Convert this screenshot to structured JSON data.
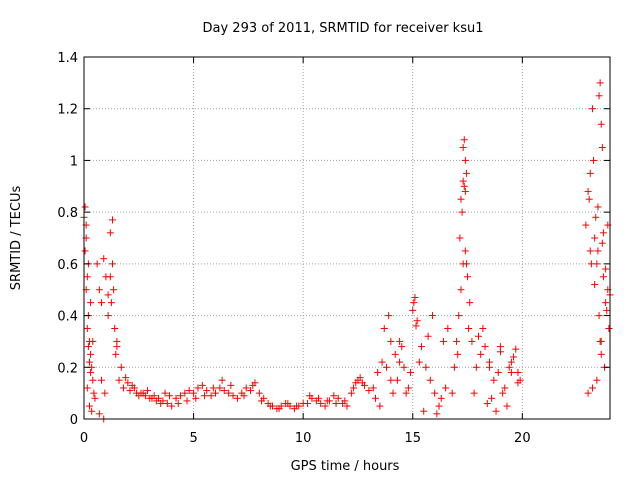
{
  "chart_data": {
    "type": "scatter",
    "title": "Day 293 of 2011, SRMTID for receiver ksu1",
    "xlabel": "GPS time / hours",
    "ylabel": "SRMTID / TECUs",
    "xlim": [
      0,
      24
    ],
    "ylim": [
      0,
      1.4
    ],
    "xticks": [
      0,
      5,
      10,
      15,
      20
    ],
    "xtick_labels": [
      "0",
      "5",
      "10",
      "15",
      "20"
    ],
    "yticks": [
      0,
      0.2,
      0.4,
      0.6,
      0.8,
      1.0,
      1.2,
      1.4
    ],
    "ytick_labels": [
      "0",
      "0.2",
      "0.4",
      "0.6",
      "0.8",
      "1",
      "1.2",
      "1.4"
    ],
    "grid": true,
    "marker": "+",
    "color": "#ff0000",
    "series": [
      {
        "name": "SRMTID",
        "x": [
          0.0,
          0.05,
          0.1,
          0.15,
          0.2,
          0.25,
          0.3,
          0.35,
          0.4,
          0.45,
          0.5,
          0.05,
          0.1,
          0.15,
          0.2,
          0.25,
          0.3,
          0.1,
          0.2,
          0.3,
          0.4,
          0.15,
          0.25,
          0.35,
          0.6,
          0.7,
          0.8,
          0.9,
          1.0,
          1.1,
          1.2,
          1.3,
          1.4,
          1.5,
          0.7,
          0.9,
          1.1,
          1.3,
          1.5,
          1.2,
          1.35,
          1.45,
          1.25,
          0.8,
          0.95,
          1.6,
          1.8,
          2.0,
          2.2,
          2.4,
          2.6,
          2.8,
          3.0,
          3.2,
          3.4,
          3.6,
          3.8,
          4.0,
          1.7,
          1.9,
          2.1,
          2.3,
          2.5,
          2.7,
          2.9,
          3.1,
          3.3,
          3.5,
          3.7,
          3.9,
          4.2,
          4.4,
          4.6,
          4.8,
          5.0,
          5.2,
          5.4,
          5.6,
          5.8,
          6.0,
          6.2,
          6.4,
          6.6,
          6.8,
          7.0,
          4.3,
          4.7,
          5.1,
          5.5,
          5.9,
          6.3,
          6.7,
          7.2,
          7.4,
          7.6,
          7.8,
          8.0,
          8.2,
          8.4,
          8.6,
          8.8,
          9.0,
          9.2,
          9.4,
          9.6,
          9.8,
          10.0,
          7.3,
          7.7,
          8.1,
          8.5,
          8.9,
          9.3,
          9.7,
          10.2,
          10.4,
          10.6,
          10.8,
          11.0,
          11.2,
          11.4,
          11.6,
          11.8,
          12.0,
          10.3,
          10.7,
          11.1,
          11.5,
          11.9,
          12.2,
          12.4,
          12.6,
          12.8,
          13.0,
          12.3,
          12.5,
          12.7,
          13.2,
          13.4,
          13.6,
          13.8,
          14.0,
          14.2,
          14.4,
          14.6,
          14.8,
          13.3,
          13.7,
          14.1,
          14.5,
          14.9,
          13.5,
          13.9,
          14.3,
          14.7,
          14.0,
          14.4,
          15.0,
          15.1,
          15.2,
          15.4,
          15.6,
          15.8,
          16.0,
          16.2,
          16.4,
          16.6,
          15.3,
          15.7,
          16.1,
          16.5,
          15.9,
          16.3,
          15.5,
          16.8,
          15.05,
          15.15,
          16.9,
          17.0,
          17.1,
          17.2,
          17.3,
          17.4,
          17.5,
          17.6,
          17.15,
          17.25,
          17.35,
          17.45,
          17.05,
          17.55,
          17.2,
          17.3,
          17.4,
          17.3,
          17.35,
          17.4,
          17.45,
          17.7,
          17.9,
          18.1,
          18.3,
          18.5,
          18.7,
          18.9,
          19.1,
          19.3,
          19.5,
          19.7,
          19.9,
          17.8,
          18.2,
          18.6,
          19.0,
          19.4,
          19.8,
          18.4,
          18.8,
          19.2,
          19.6,
          18.0,
          18.5,
          19.0,
          19.5,
          19.8,
          22.9,
          23.0,
          23.1,
          23.2,
          23.3,
          23.4,
          23.5,
          23.6,
          23.7,
          23.8,
          23.9,
          24.0,
          23.05,
          23.25,
          23.45,
          23.65,
          23.85,
          23.15,
          23.35,
          23.55,
          23.75,
          23.95,
          23.0,
          23.2,
          23.4,
          23.6,
          23.5,
          23.55,
          23.6,
          23.65,
          23.7,
          23.45,
          23.8,
          23.9,
          23.1,
          23.3
        ],
        "y": [
          0.78,
          0.82,
          0.7,
          0.55,
          0.4,
          0.3,
          0.25,
          0.2,
          0.15,
          0.1,
          0.08,
          0.65,
          0.5,
          0.35,
          0.28,
          0.22,
          0.18,
          0.75,
          0.6,
          0.45,
          0.3,
          0.12,
          0.05,
          0.03,
          0.6,
          0.5,
          0.45,
          0.62,
          0.55,
          0.48,
          0.72,
          0.6,
          0.35,
          0.28,
          0.02,
          0.0,
          0.4,
          0.77,
          0.3,
          0.55,
          0.5,
          0.25,
          0.45,
          0.15,
          0.1,
          0.15,
          0.12,
          0.14,
          0.13,
          0.1,
          0.1,
          0.09,
          0.08,
          0.09,
          0.08,
          0.07,
          0.06,
          0.05,
          0.2,
          0.16,
          0.11,
          0.12,
          0.09,
          0.1,
          0.11,
          0.08,
          0.07,
          0.06,
          0.1,
          0.09,
          0.08,
          0.09,
          0.1,
          0.11,
          0.1,
          0.12,
          0.13,
          0.11,
          0.09,
          0.1,
          0.12,
          0.11,
          0.1,
          0.09,
          0.08,
          0.06,
          0.07,
          0.08,
          0.09,
          0.12,
          0.15,
          0.13,
          0.1,
          0.12,
          0.11,
          0.14,
          0.1,
          0.08,
          0.06,
          0.05,
          0.04,
          0.05,
          0.06,
          0.05,
          0.04,
          0.05,
          0.06,
          0.09,
          0.13,
          0.07,
          0.05,
          0.04,
          0.06,
          0.05,
          0.06,
          0.08,
          0.07,
          0.06,
          0.05,
          0.07,
          0.09,
          0.08,
          0.06,
          0.05,
          0.09,
          0.08,
          0.07,
          0.06,
          0.07,
          0.1,
          0.14,
          0.16,
          0.13,
          0.11,
          0.12,
          0.15,
          0.14,
          0.12,
          0.18,
          0.22,
          0.2,
          0.15,
          0.25,
          0.3,
          0.2,
          0.12,
          0.08,
          0.35,
          0.1,
          0.28,
          0.18,
          0.05,
          0.4,
          0.15,
          0.1,
          0.3,
          0.22,
          0.42,
          0.47,
          0.38,
          0.28,
          0.2,
          0.15,
          0.1,
          0.05,
          0.3,
          0.35,
          0.22,
          0.32,
          0.02,
          0.12,
          0.4,
          0.08,
          0.03,
          0.1,
          0.45,
          0.36,
          0.2,
          0.3,
          0.4,
          0.5,
          0.6,
          0.65,
          0.55,
          0.45,
          0.7,
          0.8,
          0.9,
          0.95,
          0.25,
          0.35,
          0.85,
          0.92,
          1.0,
          1.05,
          1.08,
          0.88,
          0.6,
          0.3,
          0.2,
          0.25,
          0.28,
          0.2,
          0.15,
          0.18,
          0.1,
          0.05,
          0.22,
          0.27,
          0.15,
          0.1,
          0.35,
          0.08,
          0.28,
          0.2,
          0.18,
          0.06,
          0.03,
          0.12,
          0.24,
          0.32,
          0.22,
          0.26,
          0.18,
          0.14,
          0.75,
          0.88,
          0.95,
          1.2,
          0.7,
          0.6,
          0.4,
          0.3,
          0.55,
          0.45,
          0.5,
          0.48,
          0.85,
          1.0,
          0.82,
          0.68,
          0.42,
          0.6,
          0.78,
          0.3,
          0.2,
          0.35,
          0.1,
          0.12,
          0.15,
          0.25,
          1.25,
          1.3,
          1.14,
          1.05,
          0.72,
          0.65,
          0.58,
          0.75,
          0.65,
          0.52
        ]
      }
    ]
  }
}
